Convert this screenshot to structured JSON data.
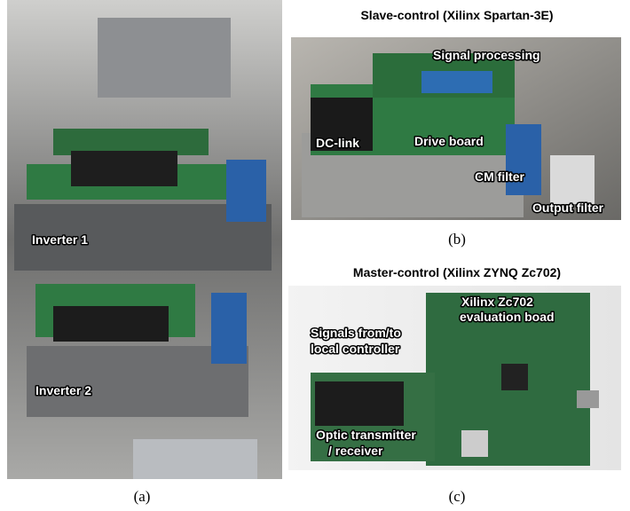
{
  "panels": [
    {
      "caption": "(a)",
      "labels": [
        [
          "Inverter 1"
        ],
        [
          "Inverter 2"
        ]
      ]
    },
    {
      "title": "Slave-control (Xilinx Spartan-3E)",
      "caption": "(b)",
      "labels": [
        [
          "Signal processing"
        ],
        [
          "DC-link"
        ],
        [
          "Drive board"
        ],
        [
          "CM filter"
        ],
        [
          "Output filter"
        ]
      ]
    },
    {
      "title": "Master-control (Xilinx ZYNQ Zc702)",
      "caption": "(c)",
      "labels": [
        [
          "Xilinx Zc702",
          "evaluation boad"
        ],
        [
          "Signals from/to",
          "local controller"
        ],
        [
          "Optic transmitter",
          "/ receiver"
        ]
      ]
    }
  ]
}
